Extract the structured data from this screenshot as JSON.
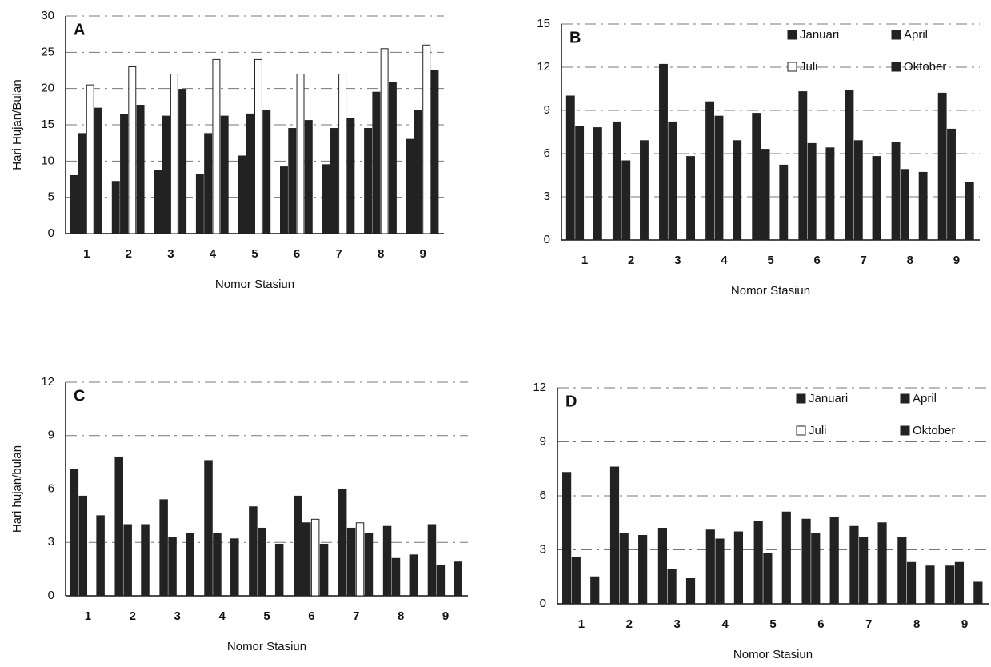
{
  "chart_data": [
    {
      "type": "bar",
      "title": "A",
      "y_label": "Hari Hujan/Bulan",
      "x_label": "Nomor Stasiun",
      "categories": [
        "1",
        "2",
        "3",
        "4",
        "5",
        "6",
        "7",
        "8",
        "9"
      ],
      "series": [
        {
          "color": "#222222",
          "values": [
            8,
            7.2,
            8.7,
            8.2,
            10.7,
            9.2,
            9.5,
            14.5,
            13
          ]
        },
        {
          "color": "#222222",
          "values": [
            13.8,
            16.4,
            16.2,
            13.8,
            16.5,
            14.5,
            14.5,
            19.5,
            17
          ]
        },
        {
          "color": "#ffffff",
          "values": [
            20.5,
            23,
            22,
            24,
            24,
            22,
            22,
            25.5,
            26
          ]
        },
        {
          "color": "#222222",
          "values": [
            17.3,
            17.7,
            19.9,
            16.2,
            17,
            15.6,
            15.9,
            20.8,
            22.5
          ]
        }
      ],
      "ylim": [
        0,
        30
      ],
      "yticks": [
        0,
        5,
        10,
        15,
        20,
        25,
        30
      ],
      "grid": true,
      "legend": false
    },
    {
      "type": "bar",
      "title": "B",
      "x_label": "Nomor Stasiun",
      "categories": [
        "1",
        "2",
        "3",
        "4",
        "5",
        "6",
        "7",
        "8",
        "9"
      ],
      "series": [
        {
          "name": "Januari",
          "color": "#222222",
          "values": [
            10,
            8.2,
            12.2,
            9.6,
            8.8,
            10.3,
            10.4,
            6.8,
            10.2
          ]
        },
        {
          "name": "April",
          "color": "#222222",
          "values": [
            7.9,
            5.5,
            8.2,
            8.6,
            6.3,
            6.7,
            6.9,
            4.9,
            7.7
          ]
        },
        {
          "name": "Juli",
          "color": "#ffffff",
          "values": [
            null,
            null,
            null,
            null,
            null,
            null,
            null,
            null,
            null
          ]
        },
        {
          "name": "Oktober",
          "color": "#222222",
          "values": [
            7.8,
            6.9,
            5.8,
            6.9,
            5.2,
            6.4,
            5.8,
            4.7,
            4
          ]
        }
      ],
      "ylim": [
        0,
        15
      ],
      "yticks": [
        0,
        3,
        6,
        9,
        12,
        15
      ],
      "grid": true,
      "legend": true
    },
    {
      "type": "bar",
      "title": "C",
      "y_label": "Hari hujan/bulan",
      "x_label": "Nomor Stasiun",
      "categories": [
        "1",
        "2",
        "3",
        "4",
        "5",
        "6",
        "7",
        "8",
        "9"
      ],
      "series": [
        {
          "color": "#222222",
          "values": [
            7.1,
            7.8,
            5.4,
            7.6,
            5,
            5.6,
            6,
            3.9,
            4
          ]
        },
        {
          "color": "#222222",
          "values": [
            5.6,
            4,
            3.3,
            3.5,
            3.8,
            4.1,
            3.8,
            2.1,
            1.7
          ]
        },
        {
          "color": "#ffffff",
          "values": [
            null,
            null,
            null,
            null,
            null,
            4.3,
            4.1,
            null,
            null
          ]
        },
        {
          "color": "#222222",
          "values": [
            4.5,
            4,
            3.5,
            3.2,
            2.9,
            2.9,
            3.5,
            2.3,
            1.9
          ]
        }
      ],
      "ylim": [
        0,
        12
      ],
      "yticks": [
        0,
        3,
        6,
        9,
        12
      ],
      "grid": true,
      "legend": false
    },
    {
      "type": "bar",
      "title": "D",
      "x_label": "Nomor Stasiun",
      "categories": [
        "1",
        "2",
        "3",
        "4",
        "5",
        "6",
        "7",
        "8",
        "9"
      ],
      "series": [
        {
          "name": "Januari",
          "color": "#222222",
          "values": [
            7.3,
            7.6,
            4.2,
            4.1,
            4.6,
            4.7,
            4.3,
            3.7,
            2.1
          ]
        },
        {
          "name": "April",
          "color": "#222222",
          "values": [
            2.6,
            3.9,
            1.9,
            3.6,
            2.8,
            3.9,
            3.7,
            2.3,
            2.3
          ]
        },
        {
          "name": "Juli",
          "color": "#ffffff",
          "values": [
            null,
            null,
            null,
            null,
            null,
            null,
            null,
            null,
            null
          ]
        },
        {
          "name": "Oktober",
          "color": "#222222",
          "values": [
            1.5,
            3.8,
            1.4,
            4,
            5.1,
            4.8,
            4.5,
            2.1,
            1.2
          ]
        }
      ],
      "ylim": [
        0,
        12
      ],
      "yticks": [
        0,
        3,
        6,
        9,
        12
      ],
      "grid": true,
      "legend": true
    }
  ]
}
